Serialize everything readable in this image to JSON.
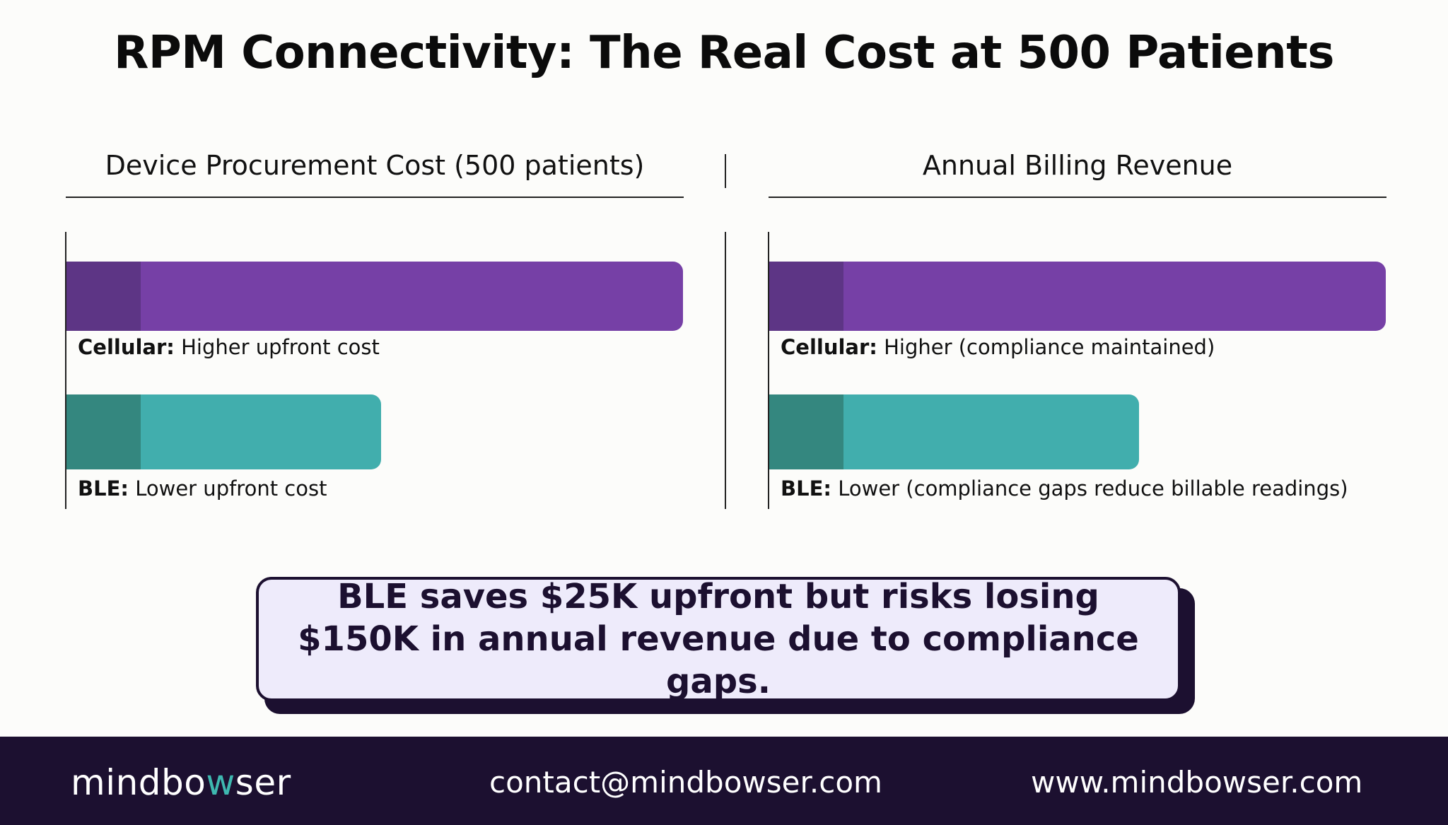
{
  "title": "RPM Connectivity: The Real Cost at 500 Patients",
  "colors": {
    "cellular": "#7640a6",
    "cellular_shade": "#5d3585",
    "ble": "#41aead",
    "ble_shade": "#34877f",
    "dark": "#1c1030",
    "callout_bg": "#eeebfb"
  },
  "chart_data": [
    {
      "type": "bar",
      "orientation": "horizontal",
      "title": "Device Procurement Cost (500 patients)",
      "categories": [
        "Cellular",
        "BLE"
      ],
      "values": [
        100,
        51
      ],
      "value_units": "relative bar length (% of longest bar); no numeric values printed",
      "colors": [
        "#7640a6",
        "#41aead"
      ],
      "labels": [
        {
          "name": "Cellular:",
          "text": "Higher upfront cost"
        },
        {
          "name": "BLE:",
          "text": "Lower upfront cost"
        }
      ]
    },
    {
      "type": "bar",
      "orientation": "horizontal",
      "title": "Annual Billing Revenue",
      "categories": [
        "Cellular",
        "BLE"
      ],
      "values": [
        100,
        60
      ],
      "value_units": "relative bar length (% of longest bar); no numeric values printed",
      "colors": [
        "#7640a6",
        "#41aead"
      ],
      "labels": [
        {
          "name": "Cellular:",
          "text": "Higher (compliance maintained)"
        },
        {
          "name": "BLE:",
          "text": "Lower (compliance gaps reduce billable readings)"
        }
      ]
    }
  ],
  "callout": "BLE saves $25K upfront but risks losing $150K in annual revenue due to compliance gaps.",
  "footer": {
    "brand_start": "mindbo",
    "brand_accent": "w",
    "brand_end": "ser",
    "email": "contact@mindbowser.com",
    "website": "www.mindbowser.com"
  }
}
